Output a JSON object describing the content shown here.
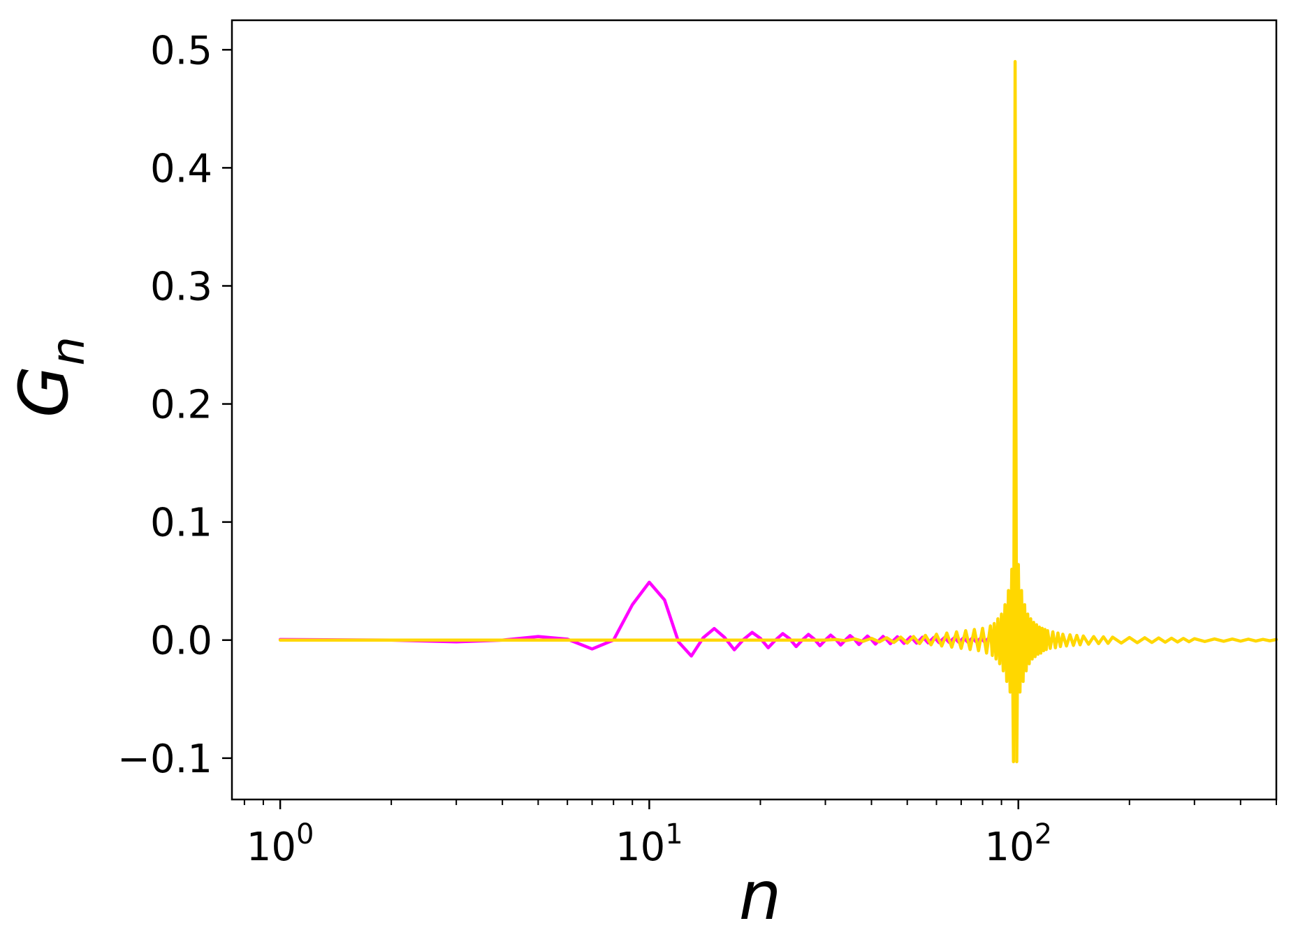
{
  "chart_data": {
    "type": "line",
    "title": "",
    "xlabel": "n",
    "ylabel": "G",
    "ylabel_subscript": "n",
    "xscale": "log",
    "xlim": [
      0.74,
      500
    ],
    "ylim": [
      -0.135,
      0.525
    ],
    "grid": false,
    "legend": "none",
    "x_ticks": [
      {
        "value": 1,
        "base": "10",
        "exp": "0"
      },
      {
        "value": 10,
        "base": "10",
        "exp": "1"
      },
      {
        "value": 100,
        "base": "10",
        "exp": "2"
      }
    ],
    "y_ticks": [
      {
        "value": -0.1,
        "label": "−0.1"
      },
      {
        "value": 0.0,
        "label": "0.0"
      },
      {
        "value": 0.1,
        "label": "0.1"
      },
      {
        "value": 0.2,
        "label": "0.2"
      },
      {
        "value": 0.3,
        "label": "0.3"
      },
      {
        "value": 0.4,
        "label": "0.4"
      },
      {
        "value": 0.5,
        "label": "0.5"
      }
    ],
    "series": [
      {
        "color": "#ff00ff",
        "x": [
          1,
          2,
          3,
          4,
          5,
          6,
          7,
          8,
          9,
          10,
          11,
          12,
          13,
          14,
          15,
          16,
          17,
          18,
          19,
          20,
          21,
          22,
          23,
          24,
          25,
          26,
          27,
          28,
          29,
          30,
          31,
          32,
          33,
          34,
          35,
          36,
          37,
          38,
          39,
          40,
          41,
          42,
          43,
          44,
          45,
          46,
          47,
          48,
          49,
          50,
          51,
          52,
          53,
          54,
          55,
          56,
          57,
          58,
          59,
          60,
          61,
          62,
          63,
          64,
          65,
          66,
          67,
          68,
          69,
          70,
          71,
          72,
          73,
          74,
          75,
          76,
          77,
          78,
          79,
          80,
          81,
          82,
          83,
          84,
          85,
          86,
          87,
          88,
          89,
          90,
          91,
          92,
          93,
          94,
          95,
          96,
          97,
          98,
          99,
          100
        ],
        "y": [
          0.0005,
          0.0,
          -0.0015,
          0.0,
          0.003,
          0.0008,
          -0.0075,
          0.0,
          0.03,
          0.049,
          0.034,
          -0.0015,
          -0.0135,
          0.002,
          0.0098,
          0.0022,
          -0.0082,
          0.0005,
          0.0065,
          0.0015,
          -0.0065,
          0.0002,
          0.0055,
          0.0012,
          -0.0055,
          0.0002,
          0.0048,
          0.0008,
          -0.0048,
          0.0001,
          0.0042,
          0.0006,
          -0.0042,
          0.0001,
          0.0038,
          0.0005,
          -0.0038,
          0.0,
          0.0034,
          0.0004,
          -0.0034,
          0.0,
          0.0031,
          0.0003,
          -0.0031,
          0.0,
          0.0028,
          0.0003,
          -0.0028,
          0.0,
          0.0026,
          0.0002,
          -0.0026,
          0.0,
          0.0024,
          0.0002,
          -0.0024,
          0.0,
          0.0022,
          0.0002,
          -0.0022,
          0.0,
          0.002,
          0.0001,
          -0.002,
          0.0,
          0.0019,
          0.0001,
          -0.0019,
          0.0,
          0.0018,
          0.0001,
          -0.0018,
          0.0,
          0.0017,
          0.0001,
          -0.0017,
          0.0,
          0.0016,
          0.0001,
          -0.0016,
          0.0,
          0.0015,
          0.0001,
          -0.0015,
          0.0,
          0.0014,
          0.0001,
          -0.0014,
          0.0,
          0.0013,
          0.0001,
          -0.0013,
          0.0,
          0.0012,
          0.0001,
          -0.0012,
          0.0,
          0.0011,
          -0.003
        ]
      },
      {
        "color": "#ffd700",
        "x": [
          1,
          2,
          3,
          4,
          5,
          6,
          7,
          8,
          9,
          10,
          11,
          12,
          13,
          14,
          15,
          16,
          17,
          18,
          19,
          20,
          22,
          24,
          26,
          28,
          30,
          32,
          34,
          36,
          38,
          40,
          42,
          44,
          46,
          48,
          50,
          52,
          54,
          56,
          58,
          60,
          62,
          64,
          66,
          68,
          70,
          72,
          74,
          76,
          78,
          80,
          82,
          84,
          85,
          86,
          87,
          88,
          89,
          90,
          91,
          92,
          93,
          94,
          95,
          96,
          97,
          98,
          99,
          100,
          101,
          102,
          103,
          104,
          105,
          106,
          107,
          108,
          109,
          110,
          111,
          112,
          113,
          114,
          115,
          116,
          117,
          118,
          119,
          120,
          122,
          124,
          126,
          128,
          130,
          132,
          135,
          138,
          141,
          144,
          147,
          150,
          155,
          160,
          165,
          170,
          175,
          180,
          190,
          200,
          210,
          220,
          230,
          240,
          250,
          260,
          270,
          280,
          290,
          300,
          320,
          340,
          360,
          380,
          400,
          420,
          440,
          460,
          480,
          500
        ],
        "y": [
          0.0,
          0.0,
          0.0,
          0.0,
          0.0,
          0.0,
          0.0,
          0.0,
          0.0,
          0.0,
          0.0,
          0.0,
          0.0,
          0.0,
          0.0,
          0.0,
          0.0,
          0.0,
          0.0,
          0.0,
          0.0,
          0.0,
          0.0,
          0.0,
          0.0,
          0.0005,
          -0.0005,
          0.001,
          -0.001,
          0.0015,
          -0.0015,
          0.002,
          -0.002,
          0.0025,
          -0.0025,
          0.003,
          -0.003,
          0.004,
          -0.004,
          0.005,
          -0.005,
          0.006,
          -0.006,
          0.007,
          -0.007,
          0.008,
          -0.008,
          0.009,
          -0.009,
          0.01,
          -0.011,
          0.012,
          -0.013,
          0.014,
          -0.016,
          0.018,
          -0.02,
          0.022,
          -0.026,
          0.03,
          -0.035,
          0.042,
          -0.044,
          0.06,
          -0.103,
          0.49,
          -0.103,
          0.064,
          -0.044,
          0.042,
          -0.035,
          0.03,
          -0.026,
          0.022,
          -0.02,
          0.018,
          -0.016,
          0.015,
          -0.014,
          0.013,
          -0.012,
          0.011,
          -0.011,
          0.01,
          -0.009,
          0.009,
          -0.008,
          0.008,
          -0.007,
          0.007,
          -0.0065,
          0.006,
          -0.0055,
          0.005,
          -0.005,
          0.0045,
          -0.0045,
          0.004,
          -0.004,
          0.0035,
          -0.0035,
          0.003,
          -0.003,
          0.0028,
          -0.0028,
          0.0025,
          -0.0025,
          0.0022,
          -0.0022,
          0.002,
          -0.002,
          0.0018,
          -0.0018,
          0.0016,
          -0.0016,
          0.0014,
          -0.0014,
          0.0012,
          -0.0012,
          0.001,
          -0.001,
          0.0009,
          -0.0009,
          0.0008,
          -0.0008,
          0.0006,
          -0.0006,
          0.0005
        ]
      }
    ]
  }
}
